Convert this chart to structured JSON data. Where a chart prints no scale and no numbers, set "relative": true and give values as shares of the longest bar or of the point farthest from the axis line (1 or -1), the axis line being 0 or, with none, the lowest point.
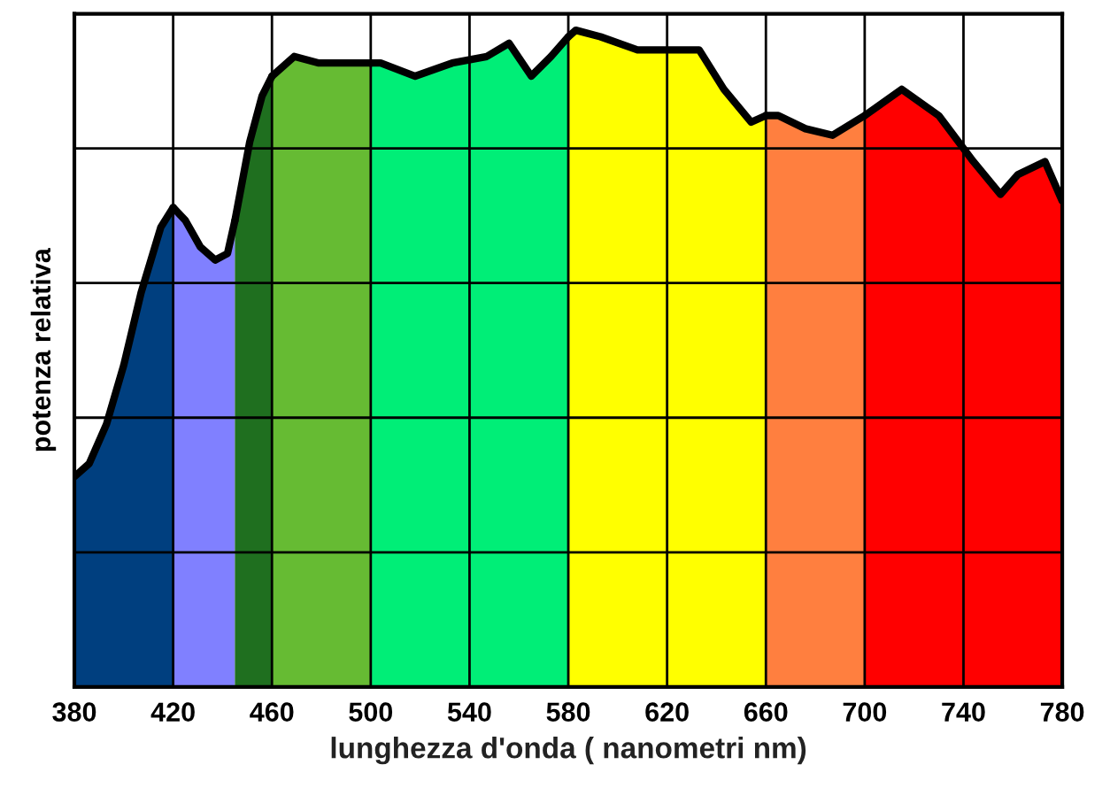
{
  "chart_data": {
    "type": "area",
    "relative": true,
    "xlabel": "lunghezza d'onda ( nanometri nm)",
    "ylabel": "potenza relativa",
    "xlim": [
      380,
      780
    ],
    "xticks": [
      380,
      420,
      460,
      500,
      540,
      580,
      620,
      660,
      700,
      740,
      780
    ],
    "grid": true,
    "series": [
      {
        "color": "#003f7f",
        "x": [
          380,
          386,
          393,
          400,
          407,
          415,
          420
        ],
        "values": [
          0.32,
          0.34,
          0.4,
          0.49,
          0.6,
          0.7,
          0.73
        ]
      },
      {
        "color": "#8080ff",
        "x": [
          420,
          425,
          431,
          437,
          442,
          445
        ],
        "values": [
          0.73,
          0.71,
          0.67,
          0.65,
          0.66,
          0.71
        ]
      },
      {
        "color": "#1f6f1f",
        "x": [
          445,
          451,
          456,
          460
        ],
        "values": [
          0.71,
          0.83,
          0.9,
          0.93
        ]
      },
      {
        "color": "#66bb33",
        "x": [
          460,
          469,
          479,
          490,
          500
        ],
        "values": [
          0.93,
          0.96,
          0.95,
          0.95,
          0.95
        ]
      },
      {
        "color": "#00ee77",
        "x": [
          500,
          504,
          518,
          533,
          547,
          556,
          565,
          573,
          580
        ],
        "values": [
          0.95,
          0.95,
          0.93,
          0.95,
          0.96,
          0.98,
          0.93,
          0.96,
          0.99
        ]
      },
      {
        "color": "#ffff00",
        "x": [
          580,
          583,
          593,
          608,
          622,
          633,
          643,
          654,
          660
        ],
        "values": [
          0.99,
          1,
          0.99,
          0.97,
          0.97,
          0.97,
          0.91,
          0.86,
          0.87
        ]
      },
      {
        "color": "#ff7f3f",
        "x": [
          660,
          665,
          676,
          687,
          700
        ],
        "values": [
          0.87,
          0.87,
          0.85,
          0.84,
          0.87
        ]
      },
      {
        "color": "#ff0000",
        "x": [
          700,
          715,
          730,
          744,
          755,
          762,
          773,
          780
        ],
        "values": [
          0.87,
          0.91,
          0.87,
          0.8,
          0.75,
          0.78,
          0.8,
          0.74
        ]
      }
    ]
  }
}
